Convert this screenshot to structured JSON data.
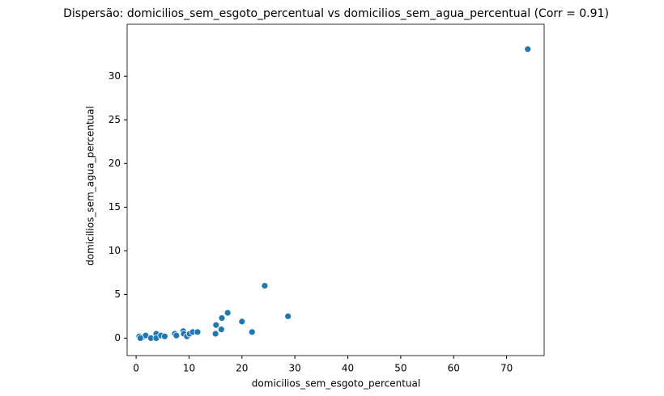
{
  "chart_data": {
    "type": "scatter",
    "title": "Dispersão: domicilios_sem_esgoto_percentual vs domicilios_sem_agua_percentual (Corr = 0.91)",
    "x_label": "domicilios_sem_esgoto_percentual",
    "y_label": "domicilios_sem_agua_percentual",
    "color": "#1f77b4",
    "x": [
      0.6,
      1.2,
      1.8,
      0.8,
      2.8,
      3.8,
      3.8,
      4.7,
      5.4,
      7.3,
      7.6,
      8.9,
      9.0,
      9.6,
      10.1,
      10.7,
      11.6,
      15.0,
      15.1,
      16.1,
      16.2,
      17.3,
      20.0,
      21.9,
      24.3,
      28.7,
      74.0
    ],
    "values": [
      0.2,
      0.1,
      0.3,
      0.0,
      0.0,
      0.5,
      0.0,
      0.3,
      0.2,
      0.5,
      0.3,
      0.8,
      0.5,
      0.2,
      0.5,
      0.7,
      0.7,
      0.5,
      1.5,
      1.0,
      2.3,
      2.9,
      1.9,
      0.7,
      6.0,
      2.5,
      33.1
    ],
    "xlim": [
      -1.7,
      77.1
    ],
    "ylim": [
      -2.0,
      35.95
    ],
    "xticks": [
      0,
      10,
      20,
      30,
      40,
      50,
      60,
      70
    ],
    "yticks": [
      0,
      5,
      10,
      15,
      20,
      25,
      30
    ]
  }
}
